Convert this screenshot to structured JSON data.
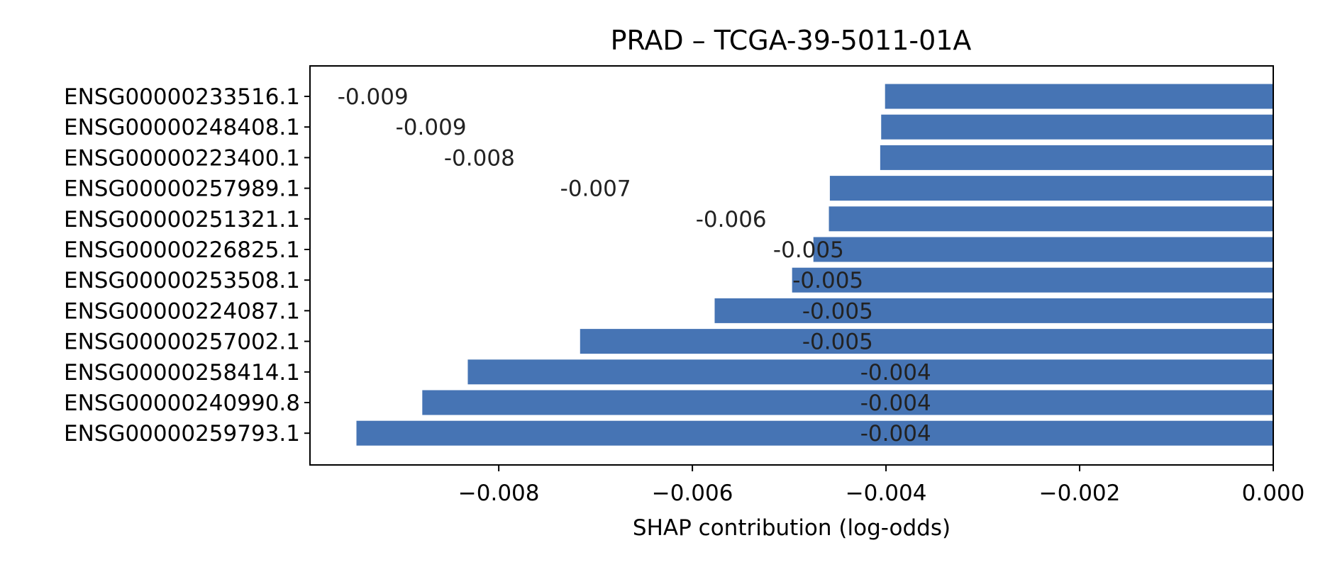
{
  "chart_data": {
    "type": "bar",
    "orientation": "horizontal",
    "title": "PRAD – TCGA-39-5011-01A",
    "xlabel": "SHAP contribution (log-odds)",
    "ylabel": "",
    "xlim": [
      -0.00995,
      0.0
    ],
    "xticks": [
      -0.008,
      -0.006,
      -0.004,
      -0.002,
      0.0
    ],
    "xtick_labels": [
      "−0.008",
      "−0.006",
      "−0.004",
      "−0.002",
      "0.000"
    ],
    "grid": false,
    "bar_color": "#4674b4",
    "categories": [
      "ENSG00000233516.1",
      "ENSG00000248408.1",
      "ENSG00000223400.1",
      "ENSG00000257989.1",
      "ENSG00000251321.1",
      "ENSG00000226825.1",
      "ENSG00000253508.1",
      "ENSG00000224087.1",
      "ENSG00000257002.1",
      "ENSG00000258414.1",
      "ENSG00000240990.8",
      "ENSG00000259793.1"
    ],
    "values": [
      -0.00401,
      -0.00405,
      -0.00406,
      -0.00458,
      -0.00459,
      -0.00475,
      -0.00497,
      -0.00577,
      -0.00716,
      -0.00832,
      -0.00879,
      -0.00947
    ],
    "data_labels": [
      "-0.009",
      "-0.009",
      "-0.008",
      "-0.007",
      "-0.006",
      "-0.005",
      "-0.005",
      "-0.005",
      "-0.005",
      "-0.004",
      "-0.004",
      "-0.004"
    ],
    "data_label_x": [
      -0.0093,
      -0.0087,
      -0.0082,
      -0.007,
      -0.0056,
      -0.0048,
      -0.0046,
      -0.0045,
      -0.0045,
      -0.0039,
      -0.0039,
      -0.0039
    ]
  }
}
